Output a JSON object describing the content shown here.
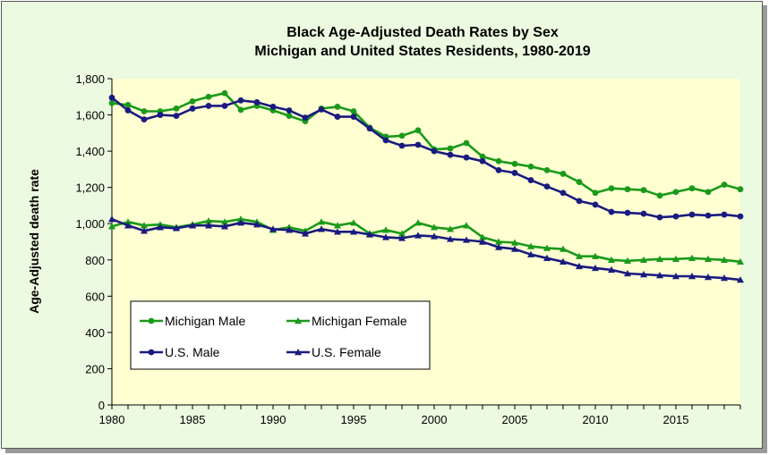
{
  "chart_data": {
    "type": "line",
    "title": [
      "Black Age-Adjusted Death Rates by Sex",
      "Michigan and United States Residents, 1980-2019"
    ],
    "xlabel": "",
    "ylabel": "Age-Adjusted death rate",
    "xlim": [
      1980,
      2019
    ],
    "ylim": [
      0,
      1800
    ],
    "x_ticks": [
      1980,
      1985,
      1990,
      1995,
      2000,
      2005,
      2010,
      2015
    ],
    "x_tick_labels": [
      "1980",
      "1985",
      "1990",
      "1995",
      "2000",
      "2005",
      "2010",
      "2015"
    ],
    "y_ticks": [
      0,
      200,
      400,
      600,
      800,
      1000,
      1200,
      1400,
      1600,
      1800
    ],
    "y_tick_labels": [
      "0",
      "200",
      "400",
      "600",
      "800",
      "1,000",
      "1,200",
      "1,400",
      "1,600",
      "1,800"
    ],
    "grid": false,
    "legend_position": "bottom-left",
    "x": [
      1980,
      1981,
      1982,
      1983,
      1984,
      1985,
      1986,
      1987,
      1988,
      1989,
      1990,
      1991,
      1992,
      1993,
      1994,
      1995,
      1996,
      1997,
      1998,
      1999,
      2000,
      2001,
      2002,
      2003,
      2004,
      2005,
      2006,
      2007,
      2008,
      2009,
      2010,
      2011,
      2012,
      2013,
      2014,
      2015,
      2016,
      2017,
      2018,
      2019
    ],
    "series": [
      {
        "name": "Michigan Male",
        "color": "#1a9a1a",
        "marker": "circle",
        "values": [
          1665,
          1655,
          1620,
          1620,
          1635,
          1675,
          1700,
          1720,
          1628,
          1650,
          1625,
          1595,
          1565,
          1635,
          1645,
          1620,
          1530,
          1480,
          1485,
          1515,
          1410,
          1415,
          1445,
          1370,
          1345,
          1330,
          1315,
          1295,
          1275,
          1230,
          1170,
          1195,
          1190,
          1185,
          1155,
          1175,
          1195,
          1175,
          1215,
          1190
        ]
      },
      {
        "name": "Michigan Female",
        "color": "#1a9a1a",
        "marker": "triangle",
        "values": [
          985,
          1010,
          990,
          995,
          980,
          995,
          1015,
          1010,
          1025,
          1010,
          965,
          980,
          960,
          1010,
          990,
          1005,
          945,
          965,
          945,
          1005,
          980,
          970,
          990,
          925,
          900,
          895,
          875,
          865,
          860,
          820,
          820,
          800,
          795,
          800,
          805,
          805,
          810,
          805,
          800,
          790
        ]
      },
      {
        "name": "U.S. Male",
        "color": "#1a1a80",
        "marker": "circle",
        "values": [
          1695,
          1625,
          1575,
          1600,
          1595,
          1635,
          1650,
          1650,
          1680,
          1670,
          1645,
          1625,
          1585,
          1630,
          1590,
          1590,
          1525,
          1460,
          1430,
          1435,
          1400,
          1380,
          1365,
          1345,
          1295,
          1280,
          1240,
          1205,
          1170,
          1125,
          1105,
          1065,
          1060,
          1055,
          1035,
          1040,
          1050,
          1045,
          1050,
          1040
        ]
      },
      {
        "name": "U.S. Female",
        "color": "#1a1a80",
        "marker": "triangle",
        "values": [
          1025,
          990,
          960,
          980,
          975,
          990,
          990,
          985,
          1005,
          995,
          970,
          965,
          945,
          970,
          955,
          955,
          940,
          925,
          920,
          935,
          930,
          915,
          910,
          900,
          870,
          860,
          830,
          810,
          790,
          765,
          755,
          745,
          725,
          720,
          715,
          710,
          710,
          705,
          700,
          690
        ]
      }
    ]
  }
}
